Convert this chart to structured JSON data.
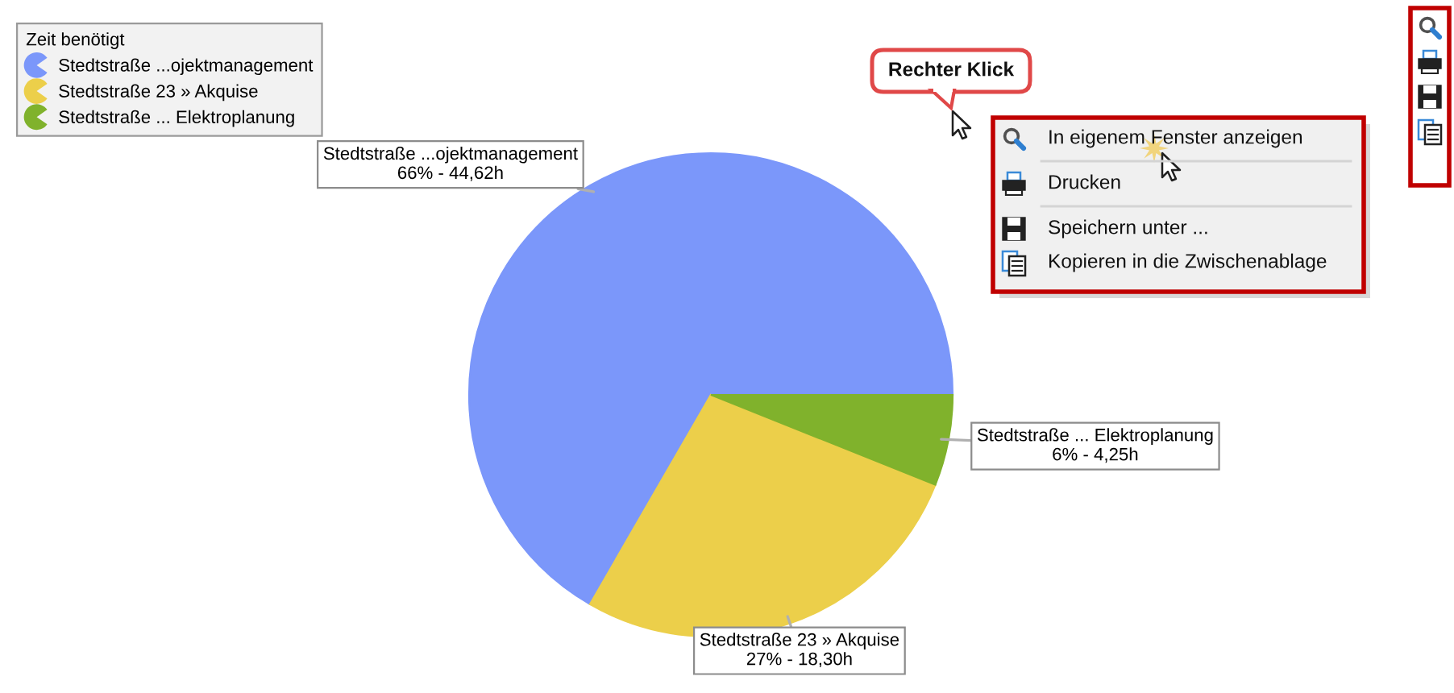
{
  "chart_data": {
    "type": "pie",
    "legend_title": "Zeit benötigt",
    "categories": [
      "Stedtstraße ...ojektmanagement",
      "Stedtstraße 23 » Akquise",
      "Stedtstraße ... Elektroplanung"
    ],
    "values": [
      66,
      27,
      6
    ],
    "value_labels": [
      "66% - 44,62h",
      "27% - 18,30h",
      "6% - 4,25h"
    ],
    "colors": [
      "#7b97fa",
      "#eccf4a",
      "#80b22c"
    ],
    "legend": "top left",
    "annotations": [
      "Rechter Klick",
      "In eigenem Fenster anzeigen",
      "Drucken",
      "Speichern unter ...",
      "Kopieren in die Zwischenablage"
    ]
  }
}
